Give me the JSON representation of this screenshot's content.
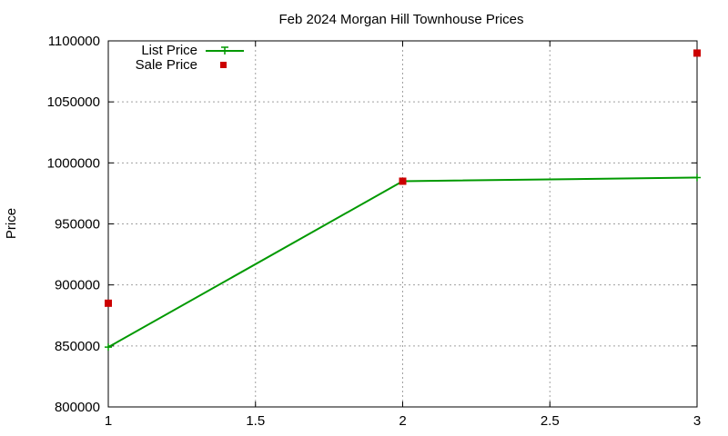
{
  "chart_data": {
    "type": "line",
    "title": "Feb 2024 Morgan Hill Townhouse Prices",
    "xlabel": "",
    "ylabel": "Price",
    "xlim": [
      1,
      3
    ],
    "ylim": [
      800000,
      1100000
    ],
    "xticks": [
      1,
      1.5,
      2,
      2.5,
      3
    ],
    "xtick_labels": [
      "1",
      "1.5",
      "2",
      "2.5",
      "3"
    ],
    "yticks": [
      800000,
      850000,
      900000,
      950000,
      1000000,
      1050000,
      1100000
    ],
    "ytick_labels": [
      "800000",
      "850000",
      "900000",
      "950000",
      "1000000",
      "1050000",
      "1100000"
    ],
    "grid": true,
    "legend_position": "top-left",
    "series": [
      {
        "name": "List Price",
        "style": "line-with-points",
        "color": "#009900",
        "x": [
          1,
          2,
          3
        ],
        "y": [
          849000,
          985000,
          988000
        ]
      },
      {
        "name": "Sale Price",
        "style": "points",
        "color": "#cc0000",
        "x": [
          1,
          2,
          3
        ],
        "y": [
          885000,
          985000,
          1090000
        ]
      }
    ]
  }
}
